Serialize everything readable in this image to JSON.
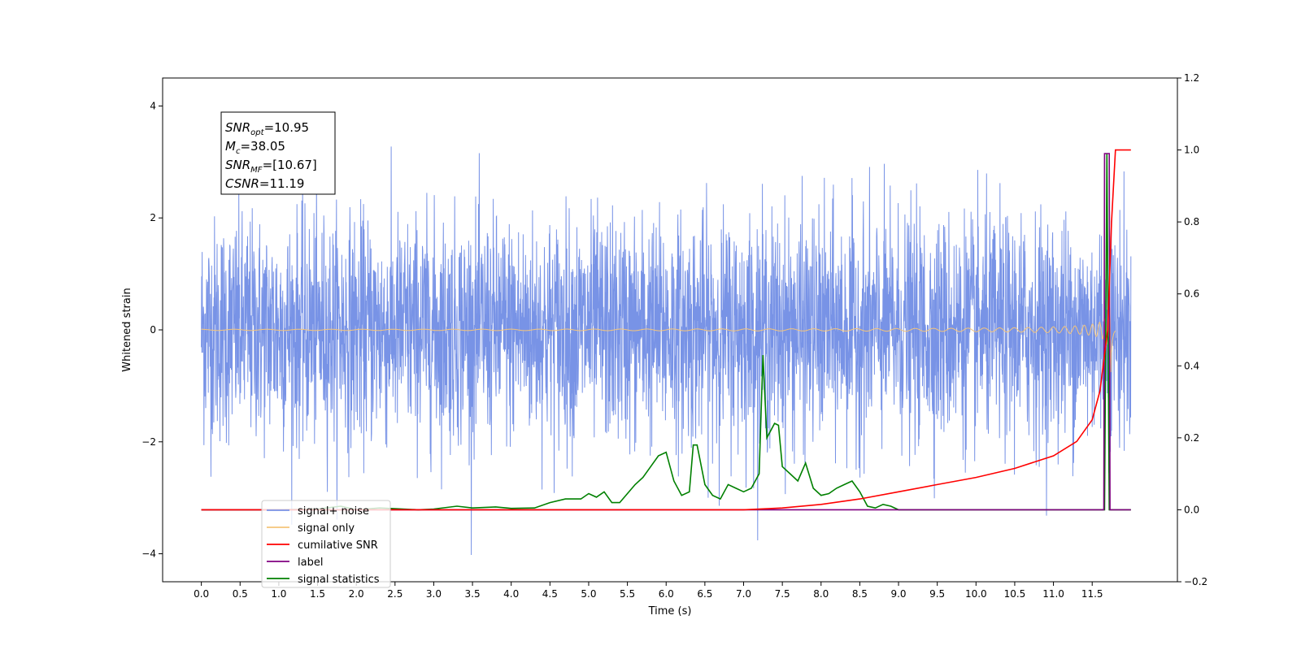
{
  "chart_data": {
    "type": "line",
    "xlabel": "Time (s)",
    "ylabel_left": "Whitened strain",
    "ylabel_right": "",
    "xlim": [
      -0.5,
      12.6
    ],
    "ylim_left": [
      -4.5,
      4.5
    ],
    "ylim_right": [
      -0.2,
      1.2
    ],
    "x_ticks": [
      "0.0",
      "0.5",
      "1.0",
      "1.5",
      "2.0",
      "2.5",
      "3.0",
      "3.5",
      "4.0",
      "4.5",
      "5.0",
      "5.5",
      "6.0",
      "6.5",
      "7.0",
      "7.5",
      "8.0",
      "8.5",
      "9.0",
      "9.5",
      "10.0",
      "10.5",
      "11.0",
      "11.5"
    ],
    "x_tick_values": [
      0,
      0.5,
      1,
      1.5,
      2,
      2.5,
      3,
      3.5,
      4,
      4.5,
      5,
      5.5,
      6,
      6.5,
      7,
      7.5,
      8,
      8.5,
      9,
      9.5,
      10,
      10.5,
      11,
      11.5
    ],
    "y_left_ticks": [
      "4",
      "2",
      "0",
      "−2",
      "−4"
    ],
    "y_left_tick_values": [
      4,
      2,
      0,
      -2,
      -4
    ],
    "y_right_ticks": [
      "1.2",
      "1.0",
      "0.8",
      "0.6",
      "0.4",
      "0.2",
      "0.0",
      "−0.2"
    ],
    "y_right_tick_values": [
      1.2,
      1.0,
      0.8,
      0.6,
      0.4,
      0.2,
      0.0,
      -0.2
    ],
    "series": [
      {
        "name": "signal+ noise",
        "axis": "left",
        "color": "#7893e6",
        "style": "gaussian noise, envelope approx. ±3.5, x from 0 to 12.0 s",
        "x_range": [
          0,
          12.0
        ],
        "amplitude": 1.0
      },
      {
        "name": "signal only",
        "axis": "left",
        "color": "#f5c57a",
        "style": "chirp, amplitude grows to ~1.0 near merger at 11.75 s",
        "x_range": [
          0,
          11.8
        ],
        "merger_time": 11.75
      },
      {
        "name": "cumilative SNR",
        "axis": "right",
        "color": "#ff0000",
        "x": [
          0,
          7.0,
          7.5,
          8.0,
          8.5,
          9.0,
          9.5,
          10.0,
          10.5,
          11.0,
          11.3,
          11.5,
          11.6,
          11.7,
          11.75,
          11.8,
          12.0
        ],
        "y": [
          0.0,
          0.0,
          0.005,
          0.015,
          0.03,
          0.05,
          0.07,
          0.09,
          0.115,
          0.15,
          0.19,
          0.25,
          0.33,
          0.5,
          0.8,
          1.0,
          1.0
        ]
      },
      {
        "name": "label",
        "axis": "right",
        "color": "#800080",
        "x": [
          0,
          11.65,
          11.66,
          11.72,
          11.73,
          12.0
        ],
        "y": [
          0,
          0,
          0.99,
          0.99,
          0,
          0
        ]
      },
      {
        "name": "signal statistics",
        "axis": "right",
        "color": "#008000",
        "x": [
          0,
          0.5,
          1.0,
          1.5,
          1.8,
          2.0,
          2.3,
          2.5,
          2.8,
          3.0,
          3.3,
          3.5,
          3.8,
          4.0,
          4.3,
          4.5,
          4.7,
          4.9,
          5.0,
          5.1,
          5.2,
          5.3,
          5.4,
          5.5,
          5.6,
          5.7,
          5.8,
          5.9,
          6.0,
          6.1,
          6.2,
          6.3,
          6.35,
          6.4,
          6.5,
          6.6,
          6.7,
          6.8,
          6.9,
          7.0,
          7.1,
          7.2,
          7.25,
          7.3,
          7.4,
          7.45,
          7.5,
          7.6,
          7.7,
          7.8,
          7.9,
          8.0,
          8.1,
          8.2,
          8.3,
          8.4,
          8.5,
          8.6,
          8.7,
          8.8,
          8.9,
          9.0,
          9.2,
          9.5,
          10.0,
          11.0,
          11.6,
          11.66,
          11.69,
          11.72,
          11.75,
          11.8,
          11.9,
          12.0
        ],
        "y": [
          0.0,
          0.0,
          0.0,
          0.002,
          0.01,
          0.0,
          0.005,
          0.003,
          0.0,
          0.002,
          0.01,
          0.005,
          0.008,
          0.004,
          0.005,
          0.02,
          0.03,
          0.03,
          0.045,
          0.035,
          0.05,
          0.02,
          0.02,
          0.045,
          0.07,
          0.09,
          0.12,
          0.15,
          0.16,
          0.08,
          0.04,
          0.05,
          0.18,
          0.18,
          0.07,
          0.04,
          0.03,
          0.07,
          0.06,
          0.05,
          0.06,
          0.1,
          0.43,
          0.2,
          0.24,
          0.235,
          0.12,
          0.1,
          0.08,
          0.13,
          0.06,
          0.04,
          0.045,
          0.06,
          0.07,
          0.08,
          0.05,
          0.01,
          0.005,
          0.015,
          0.01,
          0.0,
          0.0,
          0.0,
          0.0,
          0.0,
          0.0,
          0.0,
          0.99,
          0.0,
          0.0,
          0.0,
          0.0,
          0.0
        ]
      }
    ],
    "legend": {
      "placement": "lower-left",
      "entries": [
        {
          "label": "signal+ noise",
          "color": "#7893e6"
        },
        {
          "label": "signal only",
          "color": "#f5c57a"
        },
        {
          "label": "cumilative SNR",
          "color": "#ff0000"
        },
        {
          "label": "label",
          "color": "#800080"
        },
        {
          "label": "signal statistics",
          "color": "#008000"
        }
      ]
    },
    "annotation": {
      "placement": "upper-left",
      "lines": [
        {
          "name": "SNR",
          "subscript": "opt",
          "value": "=10.95"
        },
        {
          "name": "M",
          "subscript": "c",
          "value": "=38.05"
        },
        {
          "name": "SNR",
          "subscript": "MF",
          "value": "=[10.67]"
        },
        {
          "name": "CSNR",
          "subscript": "",
          "value": "=11.19"
        }
      ]
    }
  }
}
